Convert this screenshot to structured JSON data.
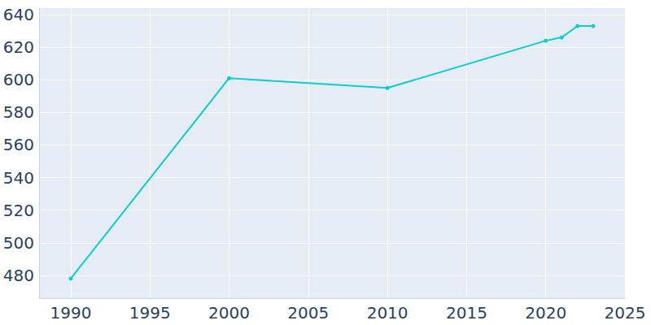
{
  "chart_data": {
    "type": "line",
    "x": [
      1990,
      2000,
      2010,
      2020,
      2021,
      2022,
      2023
    ],
    "values": [
      478,
      601,
      595,
      624,
      626,
      633,
      633
    ],
    "color": "#0bcdcd",
    "marker": "circle",
    "xlim": [
      1988,
      2025
    ],
    "xticks": [
      1990,
      1995,
      2000,
      2005,
      2010,
      2015,
      2020,
      2025
    ],
    "ylim": [
      466,
      644
    ],
    "yticks": [
      480,
      500,
      520,
      540,
      560,
      580,
      600,
      620,
      640
    ],
    "grid": true
  }
}
